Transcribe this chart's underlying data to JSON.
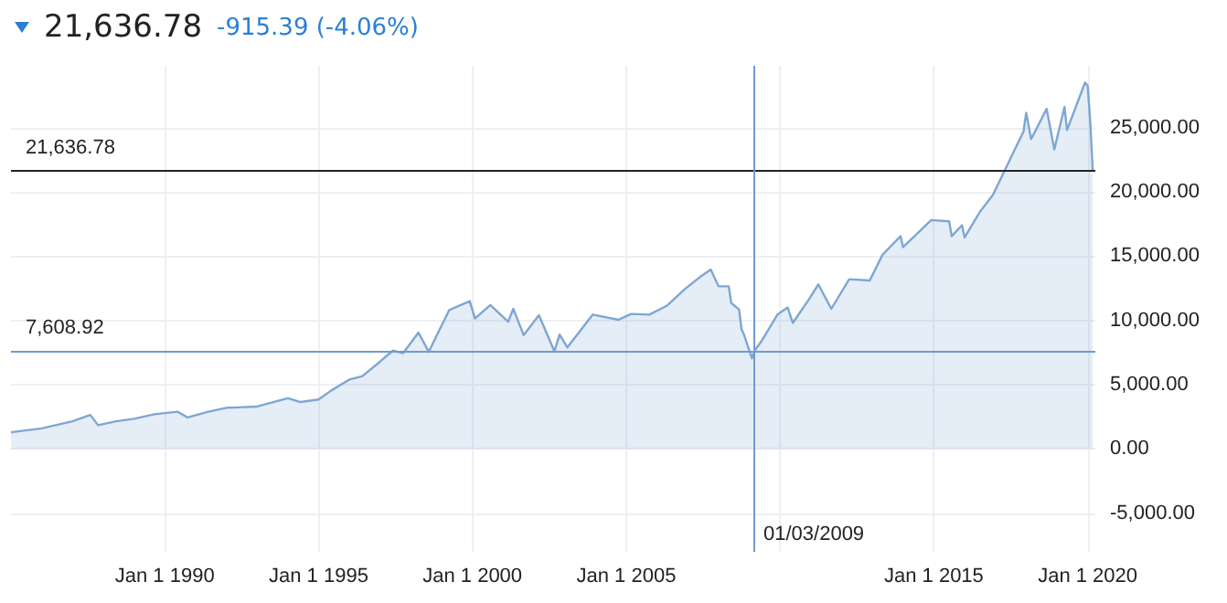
{
  "chart_data": {
    "type": "area",
    "title": "21,636.78",
    "subtitle": "-915.39 (-4.06%)",
    "series": [
      {
        "color": "#7fa6d2",
        "x": [
          "1985-01",
          "1986-01",
          "1987-01",
          "1987-08",
          "1987-11",
          "1988-06",
          "1989-01",
          "1989-09",
          "1990-06",
          "1990-10",
          "1991-06",
          "1992-01",
          "1993-01",
          "1994-01",
          "1994-06",
          "1995-01",
          "1995-06",
          "1996-01",
          "1996-06",
          "1997-01",
          "1997-06",
          "1997-10",
          "1998-04",
          "1998-08",
          "1998-12",
          "1999-04",
          "1999-12",
          "2000-02",
          "2000-08",
          "2001-03",
          "2001-05",
          "2001-09",
          "2002-03",
          "2002-09",
          "2002-11",
          "2003-02",
          "2003-12",
          "2004-10",
          "2005-03",
          "2005-10",
          "2006-05",
          "2006-12",
          "2007-06",
          "2007-10",
          "2008-01",
          "2008-05",
          "2008-06",
          "2008-09",
          "2008-10",
          "2008-11",
          "2009-02",
          "2009-03",
          "2009-06",
          "2009-12",
          "2010-04",
          "2010-06",
          "2010-12",
          "2011-04",
          "2011-09",
          "2012-04",
          "2012-12",
          "2013-05",
          "2013-12",
          "2014-01",
          "2014-12",
          "2015-07",
          "2015-08",
          "2015-12",
          "2016-01",
          "2016-07",
          "2016-12",
          "2017-12",
          "2018-01",
          "2018-03",
          "2018-09",
          "2018-12",
          "2019-04",
          "2019-05",
          "2019-12",
          "2020-01",
          "2020-02",
          "2020-03"
        ],
        "values": [
          1300,
          1600,
          2150,
          2650,
          1850,
          2150,
          2350,
          2700,
          2900,
          2450,
          2900,
          3200,
          3300,
          3950,
          3650,
          3850,
          4550,
          5400,
          5650,
          6800,
          7650,
          7450,
          9050,
          7550,
          9200,
          10800,
          11500,
          10150,
          11200,
          9900,
          10900,
          8850,
          10400,
          7600,
          8900,
          7900,
          10450,
          10050,
          10500,
          10450,
          11150,
          12450,
          13400,
          13950,
          12650,
          12650,
          11350,
          10850,
          9300,
          8850,
          7050,
          7608.92,
          8450,
          10450,
          11000,
          9800,
          11550,
          12800,
          10900,
          13200,
          13100,
          15100,
          16550,
          15700,
          17800,
          17700,
          16550,
          17400,
          16450,
          18450,
          19750,
          24700,
          26150,
          24100,
          26450,
          23300,
          26600,
          24800,
          28500,
          28250,
          25400,
          21636.78
        ]
      }
    ],
    "xlim": [
      "1985-01",
      "2020-04"
    ],
    "xticks": [
      {
        "value": "1990",
        "label": "Jan 1 1990"
      },
      {
        "value": "1995",
        "label": "Jan 1 1995"
      },
      {
        "value": "2000",
        "label": "Jan 1 2000"
      },
      {
        "value": "2005",
        "label": "Jan 1 2005"
      },
      {
        "value": "2010",
        "label": null
      },
      {
        "value": "2015",
        "label": "Jan 1 2015"
      },
      {
        "value": "2020",
        "label": "Jan 1 2020"
      }
    ],
    "ylim": [
      -8000,
      29800
    ],
    "yticks": [
      {
        "value": -5000,
        "label": "-5,000.00"
      },
      {
        "value": 0,
        "label": "0.00"
      },
      {
        "value": 5000,
        "label": "5,000.00"
      },
      {
        "value": 10000,
        "label": "10,000.00"
      },
      {
        "value": 15000,
        "label": "15,000.00"
      },
      {
        "value": 20000,
        "label": "20,000.00"
      },
      {
        "value": 25000,
        "label": "25,000.00"
      }
    ],
    "grid": true,
    "ref_lines": [
      {
        "axis": "y",
        "value": 21636.78,
        "label": "21,636.78",
        "color": "#222222"
      },
      {
        "axis": "y",
        "value": 7608.92,
        "label": "7,608.92",
        "color": "#6f9bd1"
      },
      {
        "axis": "x",
        "value": "2009-03",
        "label": "01/03/2009",
        "color": "#6f9bd1"
      }
    ]
  }
}
